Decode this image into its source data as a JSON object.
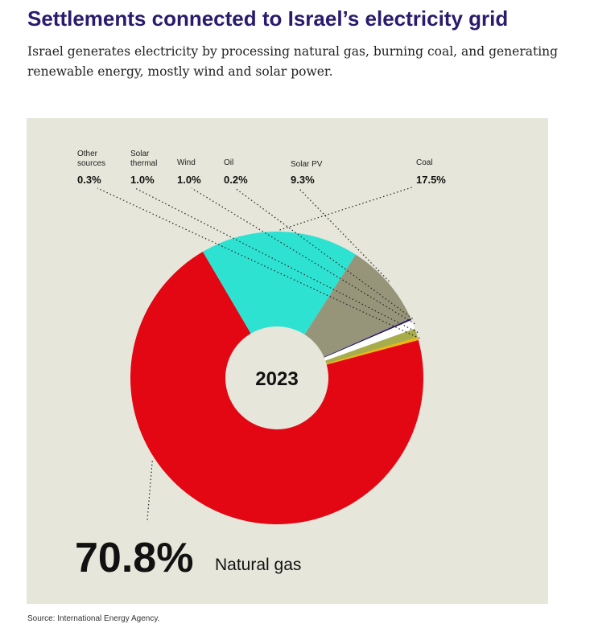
{
  "header": {
    "title": "Settlements connected to Israel’s electricity grid",
    "subtitle": "Israel generates electricity by processing natural gas, burning coal, and generating renewable energy, mostly wind and solar power."
  },
  "source": "Source: International Energy Agency.",
  "chart_data": {
    "type": "pie",
    "center_label": "2023",
    "unit": "%",
    "series": [
      {
        "name": "Natural gas",
        "value": 70.8,
        "value_label": "70.8%",
        "color": "#e30613",
        "name_lines": [
          "Natural gas"
        ]
      },
      {
        "name": "Coal",
        "value": 17.5,
        "value_label": "17.5%",
        "color": "#2ee2d2",
        "name_lines": [
          "Coal"
        ]
      },
      {
        "name": "Solar PV",
        "value": 9.3,
        "value_label": "9.3%",
        "color": "#96957a",
        "name_lines": [
          "Solar PV"
        ]
      },
      {
        "name": "Oil",
        "value": 0.2,
        "value_label": "0.2%",
        "color": "#2a1b6e",
        "name_lines": [
          "Oil"
        ]
      },
      {
        "name": "Wind",
        "value": 1.0,
        "value_label": "1.0%",
        "color": "#ffffff",
        "name_lines": [
          "Wind"
        ]
      },
      {
        "name": "Solar thermal",
        "value": 1.0,
        "value_label": "1.0%",
        "color": "#a7ad4a",
        "name_lines": [
          "Solar",
          "thermal"
        ]
      },
      {
        "name": "Other sources",
        "value": 0.3,
        "value_label": "0.3%",
        "color": "#f2b705",
        "name_lines": [
          "Other",
          "sources"
        ]
      }
    ]
  }
}
